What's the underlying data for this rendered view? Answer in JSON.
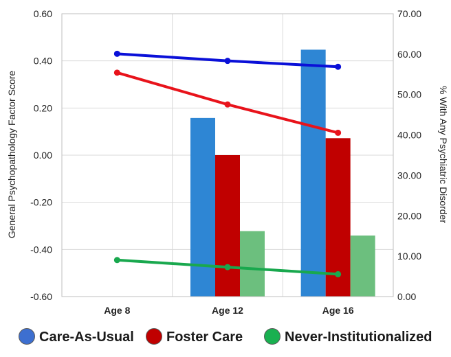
{
  "chart_data": {
    "type": "bar",
    "title": "",
    "xlabel": "",
    "categories": [
      "Age 8",
      "Age 12",
      "Age 16"
    ],
    "y_left": {
      "label": "General Psychopathology Factor Score",
      "range": [
        -0.6,
        0.6
      ],
      "ticks": [
        "0.60",
        "0.40",
        "0.20",
        "0.00",
        "-0.20",
        "-0.40",
        "-0.60"
      ],
      "tick_values": [
        0.6,
        0.4,
        0.2,
        0.0,
        -0.2,
        -0.4,
        -0.6
      ]
    },
    "y_right": {
      "label": "% With Any Psychiatric Disorder",
      "range": [
        0,
        70
      ],
      "ticks": [
        "70.00",
        "60.00",
        "50.00",
        "40.00",
        "30.00",
        "20.00",
        "10.00",
        "0.00"
      ],
      "tick_values": [
        70,
        60,
        50,
        40,
        30,
        20,
        10,
        0
      ]
    },
    "grid": true,
    "legend_position": "bottom",
    "bar_series": [
      {
        "name": "Care-As-Usual",
        "color": "#2e86d4",
        "values": [
          null,
          44.2,
          61.1
        ],
        "axis": "right"
      },
      {
        "name": "Foster Care",
        "color": "#c00000",
        "values": [
          null,
          35.0,
          39.2
        ],
        "axis": "right"
      },
      {
        "name": "Never-Institutionalized",
        "color": "#6cbf7e",
        "values": [
          null,
          16.2,
          15.1
        ],
        "axis": "right"
      }
    ],
    "line_series": [
      {
        "name": "Care-As-Usual",
        "color": "#0a10d8",
        "values": [
          0.43,
          0.4,
          0.375
        ],
        "axis": "left"
      },
      {
        "name": "Foster Care",
        "color": "#e8131b",
        "values": [
          0.35,
          0.215,
          0.095
        ],
        "axis": "left"
      },
      {
        "name": "Never-Institutionalized",
        "color": "#19a84e",
        "values": [
          -0.445,
          -0.475,
          -0.505
        ],
        "axis": "left"
      }
    ]
  },
  "legend": {
    "items": [
      {
        "label": "Care-As-Usual",
        "color": "#3d6fd0"
      },
      {
        "label": "Foster Care",
        "color": "#c00000"
      },
      {
        "label": "Never-Institutionalized",
        "color": "#19b050"
      }
    ]
  }
}
